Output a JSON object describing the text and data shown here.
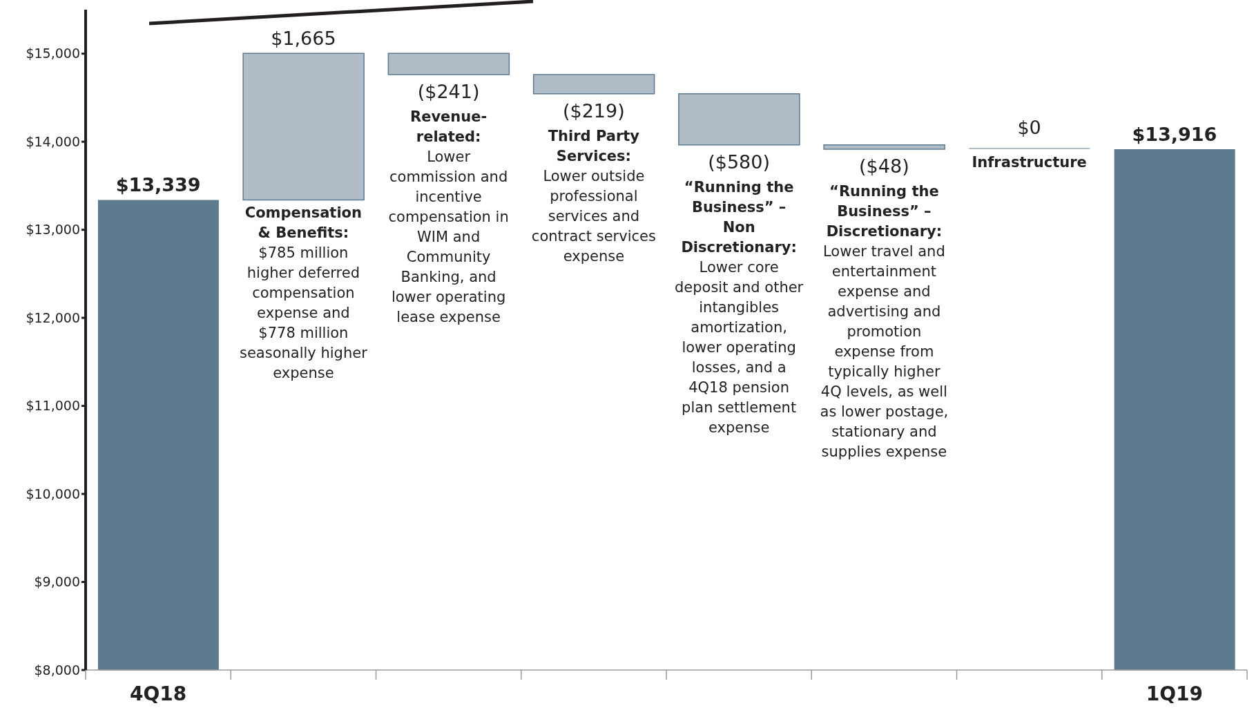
{
  "chart_data": {
    "type": "bar",
    "categories": [
      "4Q18",
      null,
      null,
      null,
      null,
      null,
      null,
      "1Q19"
    ],
    "values": [
      13339,
      1665,
      -241,
      -219,
      -580,
      -48,
      0,
      13916
    ],
    "base": [
      null,
      13339,
      15004,
      14763,
      14544,
      13964,
      13916,
      null
    ],
    "colors": [
      "#5e7a8f",
      "#b0bdc7",
      "#b0bdc7",
      "#b0bdc7",
      "#b0bdc7",
      "#b0bdc7",
      "#b0bdc7",
      "#5e7a8f"
    ],
    "value_labels": [
      "$13,339",
      "$1,665",
      "($241)",
      "($219)",
      "($580)",
      "($48)",
      "$0",
      "$13,916"
    ],
    "ylim": [
      8000,
      15500
    ],
    "yticks": [
      {
        "value": 8000,
        "label": "$8,000"
      },
      {
        "value": 9000,
        "label": "$9,000"
      },
      {
        "value": 10000,
        "label": "$10,000"
      },
      {
        "value": 11000,
        "label": "$11,000"
      },
      {
        "value": 12000,
        "label": "$12,000"
      },
      {
        "value": 13000,
        "label": "$13,000"
      },
      {
        "value": 14000,
        "label": "$14,000"
      },
      {
        "value": 15000,
        "label": "$15,000"
      }
    ],
    "annotations": [
      "Compensation & Benefits: $785 million higher deferred compensation expense and $778 million seasonally higher expense",
      "Revenue-related: Lower commission and incentive compensation in WIM and Community Banking, and lower operating lease expense",
      "Third Party Services: Lower outside professional services and contract services expense",
      "“Running the Business” – Non Discretionary: Lower core deposit and other intangibles amortization, lower operating losses, and a 4Q18 pension plan settlement expense",
      "“Running the Business” – Discretionary: Lower travel and entertainment expense and advertising and promotion expense from typically higher 4Q levels, as well as lower postage, stationary and supplies expense",
      "Infrastructure"
    ]
  }
}
